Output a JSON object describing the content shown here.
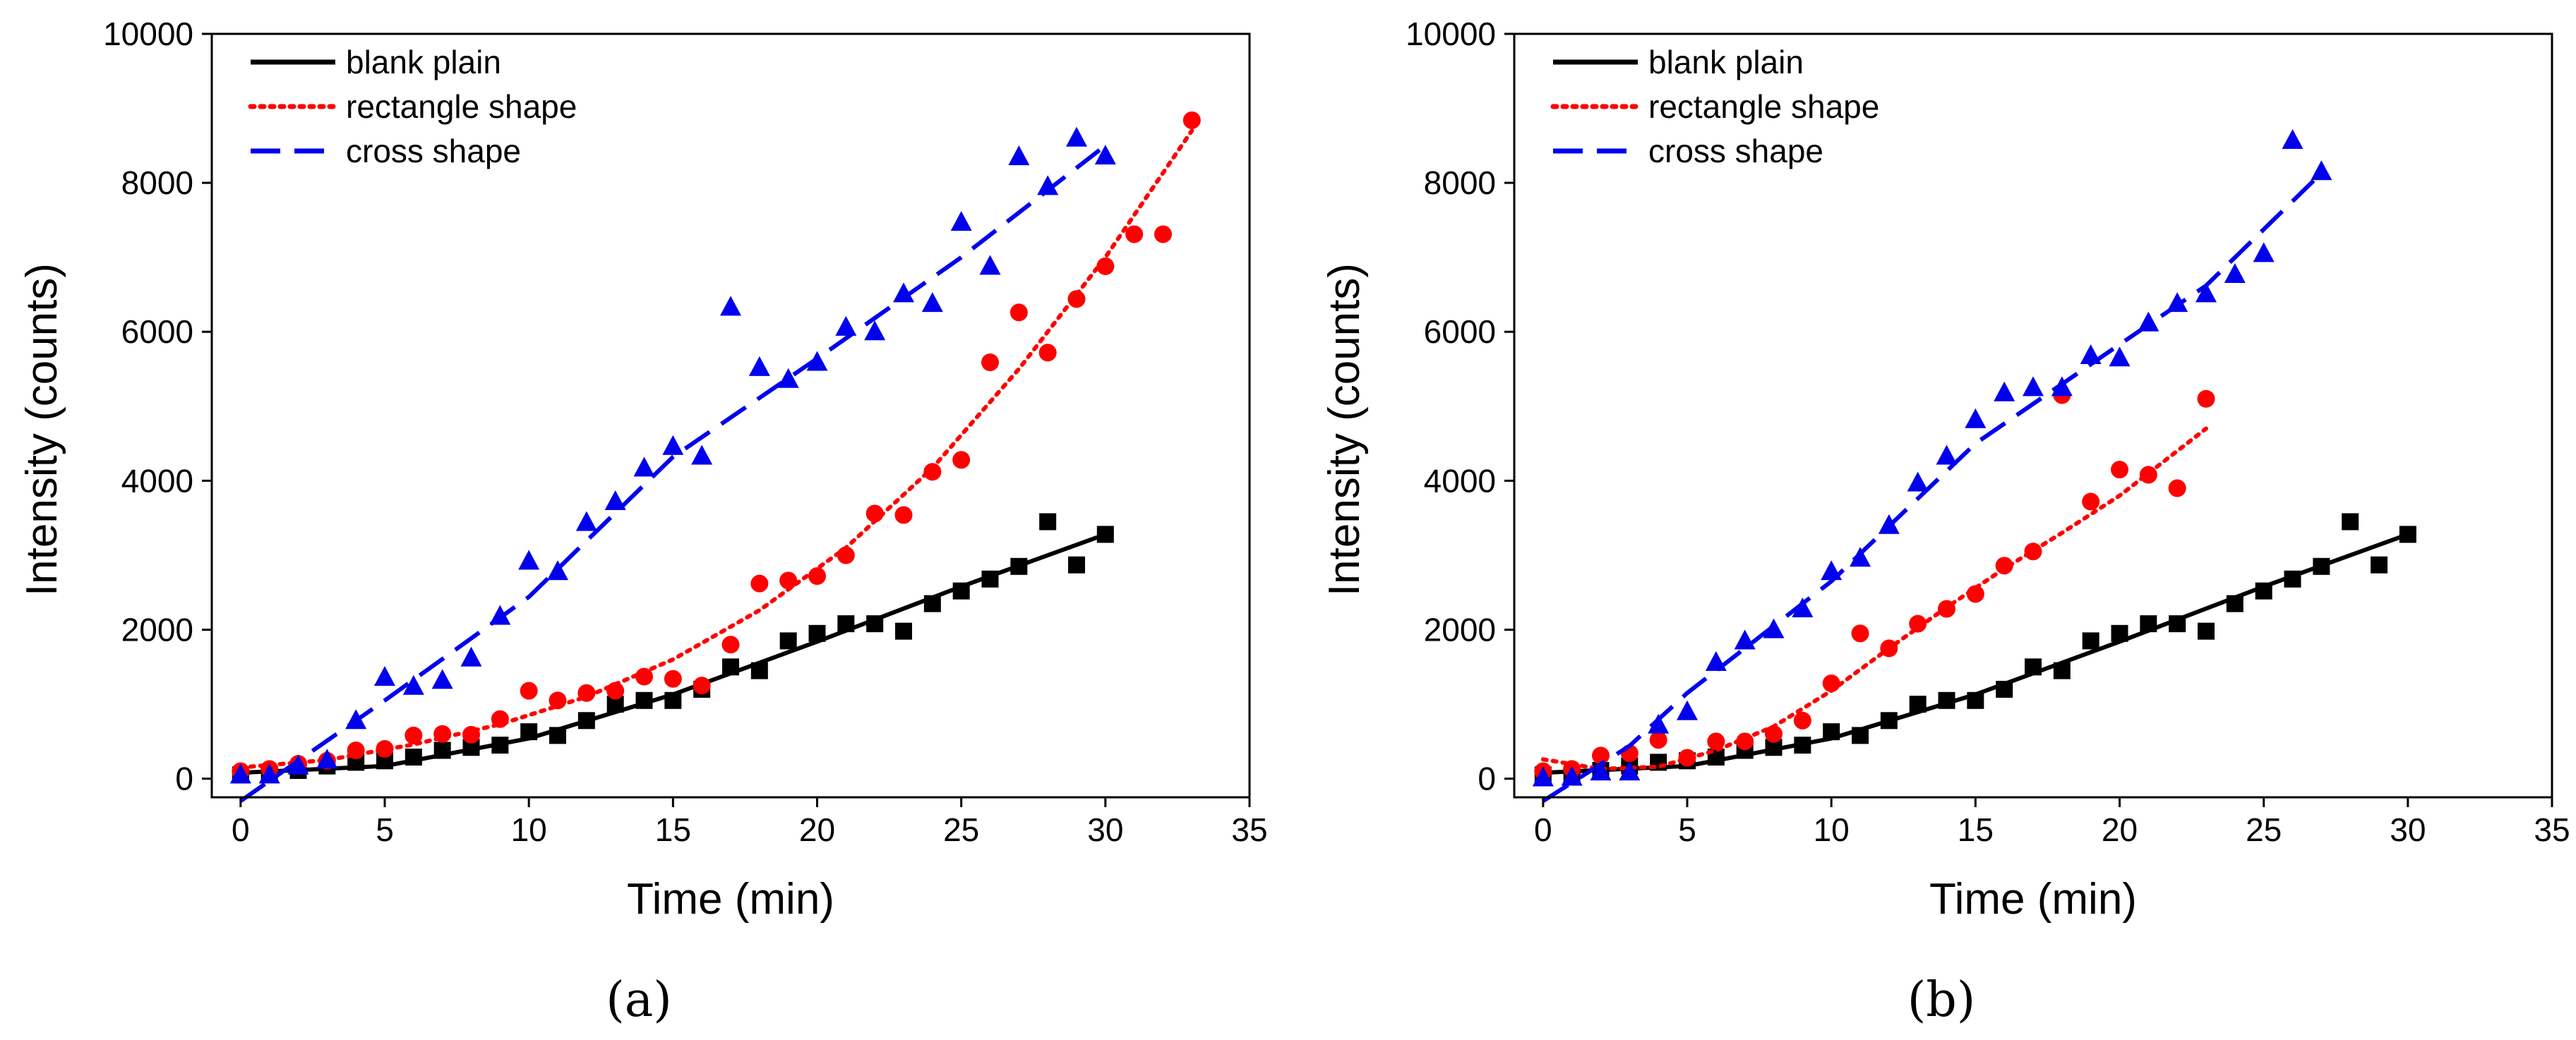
{
  "colors": {
    "blank": "#000000",
    "rectangle": "#ff0000",
    "cross": "#0000ee"
  },
  "chart_data": [
    {
      "type": "scatter",
      "panel_label": "(a)",
      "xlabel": "Time (min)",
      "ylabel": "Intensity (counts)",
      "xlim": [
        -1,
        35
      ],
      "ylim": [
        -250,
        10000
      ],
      "xticks": [
        0,
        5,
        10,
        15,
        20,
        25,
        30,
        35
      ],
      "yticks": [
        0,
        2000,
        4000,
        6000,
        8000,
        10000
      ],
      "legend": [
        "blank plain",
        "rectangle shape",
        "cross shape"
      ],
      "series": [
        {
          "name": "blank plain",
          "marker": "square",
          "line": "solid",
          "color": "#000000",
          "x": [
            0,
            1,
            2,
            3,
            4,
            5,
            6,
            7,
            8,
            9,
            10,
            11,
            12,
            13,
            14,
            15,
            16,
            17,
            18,
            19,
            20,
            21,
            22,
            23,
            24,
            25,
            26,
            27,
            28,
            29,
            30
          ],
          "y": [
            50,
            60,
            110,
            170,
            220,
            240,
            290,
            380,
            420,
            450,
            630,
            580,
            780,
            1000,
            1050,
            1050,
            1200,
            1500,
            1450,
            1850,
            1950,
            2080,
            2080,
            1980,
            2350,
            2520,
            2680,
            2850,
            3450,
            2870,
            3280
          ],
          "fit": [
            [
              0,
              80
            ],
            [
              5,
              170
            ],
            [
              10,
              540
            ],
            [
              15,
              1130
            ],
            [
              20,
              1840
            ],
            [
              25,
              2580
            ],
            [
              30,
              3280
            ]
          ]
        },
        {
          "name": "rectangle shape",
          "marker": "circle",
          "line": "dotted",
          "color": "#ff0000",
          "x": [
            0,
            1,
            2,
            3,
            4,
            5,
            6,
            7,
            8,
            9,
            10,
            11,
            12,
            13,
            14,
            15,
            16,
            17,
            18,
            19,
            20,
            21,
            22,
            23,
            24,
            25,
            26,
            27,
            28,
            29,
            30,
            31,
            32,
            33
          ],
          "y": [
            100,
            130,
            200,
            240,
            380,
            400,
            580,
            600,
            590,
            800,
            1180,
            1050,
            1150,
            1180,
            1370,
            1340,
            1250,
            1800,
            2620,
            2660,
            2720,
            3000,
            3560,
            3540,
            4120,
            4280,
            5590,
            6260,
            5720,
            6440,
            6880,
            7310,
            7310,
            8840
          ],
          "fit": [
            [
              0,
              150
            ],
            [
              3,
              250
            ],
            [
              6,
              460
            ],
            [
              9,
              730
            ],
            [
              12,
              1100
            ],
            [
              15,
              1600
            ],
            [
              18,
              2260
            ],
            [
              21,
              3100
            ],
            [
              24,
              4170
            ],
            [
              27,
              5500
            ],
            [
              30,
              7000
            ],
            [
              33,
              8700
            ]
          ]
        },
        {
          "name": "cross shape",
          "marker": "triangle",
          "line": "dashed",
          "color": "#0000ee",
          "x": [
            0,
            1,
            2,
            3,
            4,
            5,
            6,
            7,
            8,
            9,
            10,
            11,
            12,
            13,
            14,
            15,
            16,
            17,
            18,
            19,
            20,
            21,
            22,
            23,
            24,
            25,
            26,
            27,
            28,
            29,
            30
          ],
          "y": [
            50,
            50,
            170,
            250,
            780,
            1360,
            1240,
            1320,
            1620,
            2180,
            2920,
            2780,
            3440,
            3720,
            4170,
            4460,
            4330,
            6330,
            5520,
            5360,
            5590,
            6060,
            6000,
            6510,
            6380,
            7470,
            6880,
            8350,
            7950,
            8600,
            8360
          ],
          "fit": [
            [
              0,
              -300
            ],
            [
              5,
              1050
            ],
            [
              10,
              2440
            ],
            [
              15,
              4320
            ],
            [
              20,
              5640
            ],
            [
              25,
              7000
            ],
            [
              30,
              8500
            ]
          ]
        }
      ]
    },
    {
      "type": "scatter",
      "panel_label": "(b)",
      "xlabel": "Time (min)",
      "ylabel": "Intensity (counts)",
      "xlim": [
        -1,
        35
      ],
      "ylim": [
        -250,
        10000
      ],
      "xticks": [
        0,
        5,
        10,
        15,
        20,
        25,
        30,
        35
      ],
      "yticks": [
        0,
        2000,
        4000,
        6000,
        8000,
        10000
      ],
      "legend": [
        "blank plain",
        "rectangle shape",
        "cross shape"
      ],
      "series": [
        {
          "name": "blank plain",
          "marker": "square",
          "line": "solid",
          "color": "#000000",
          "x": [
            0,
            1,
            2,
            3,
            4,
            5,
            6,
            7,
            8,
            9,
            10,
            11,
            12,
            13,
            14,
            15,
            16,
            17,
            18,
            19,
            20,
            21,
            22,
            23,
            24,
            25,
            26,
            27,
            28,
            29,
            30
          ],
          "y": [
            50,
            60,
            110,
            170,
            220,
            240,
            290,
            380,
            420,
            450,
            630,
            580,
            780,
            1000,
            1050,
            1050,
            1200,
            1500,
            1450,
            1850,
            1950,
            2080,
            2080,
            1980,
            2350,
            2520,
            2680,
            2850,
            3450,
            2870,
            3280
          ],
          "fit": [
            [
              0,
              80
            ],
            [
              5,
              170
            ],
            [
              10,
              540
            ],
            [
              15,
              1130
            ],
            [
              20,
              1840
            ],
            [
              25,
              2580
            ],
            [
              30,
              3280
            ]
          ]
        },
        {
          "name": "rectangle shape",
          "marker": "circle",
          "line": "dotted",
          "color": "#ff0000",
          "x": [
            0,
            1,
            2,
            3,
            4,
            5,
            6,
            7,
            8,
            9,
            10,
            11,
            12,
            13,
            14,
            15,
            16,
            17,
            18,
            19,
            20,
            21,
            22,
            23
          ],
          "y": [
            100,
            130,
            310,
            340,
            520,
            280,
            500,
            500,
            600,
            780,
            1280,
            1950,
            1750,
            2080,
            2280,
            2480,
            2860,
            3050,
            5150,
            3720,
            4150,
            4080,
            3900,
            5100
          ],
          "fit": [
            [
              0,
              260
            ],
            [
              2,
              130
            ],
            [
              4,
              160
            ],
            [
              6,
              380
            ],
            [
              8,
              700
            ],
            [
              10,
              1180
            ],
            [
              12,
              1750
            ],
            [
              14,
              2300
            ],
            [
              16,
              2820
            ],
            [
              18,
              3300
            ],
            [
              20,
              3800
            ],
            [
              23,
              4700
            ]
          ]
        },
        {
          "name": "cross shape",
          "marker": "triangle",
          "line": "dashed",
          "color": "#0000ee",
          "x": [
            0,
            1,
            2,
            3,
            4,
            5,
            6,
            7,
            8,
            9,
            10,
            11,
            12,
            13,
            14,
            15,
            16,
            17,
            18,
            19,
            20,
            21,
            22,
            23,
            24,
            25,
            26,
            27
          ],
          "y": [
            10,
            20,
            90,
            90,
            720,
            900,
            1560,
            1850,
            2000,
            2280,
            2780,
            2960,
            3400,
            3970,
            4330,
            4820,
            5180,
            5250,
            5250,
            5680,
            5650,
            6120,
            6380,
            6510,
            6770,
            7050,
            8570,
            8150
          ],
          "fit": [
            [
              0,
              -300
            ],
            [
              3,
              440
            ],
            [
              5,
              1150
            ],
            [
              10,
              2650
            ],
            [
              15,
              4500
            ],
            [
              20,
              5830
            ],
            [
              23,
              6620
            ],
            [
              27,
              8130
            ]
          ]
        }
      ]
    }
  ]
}
